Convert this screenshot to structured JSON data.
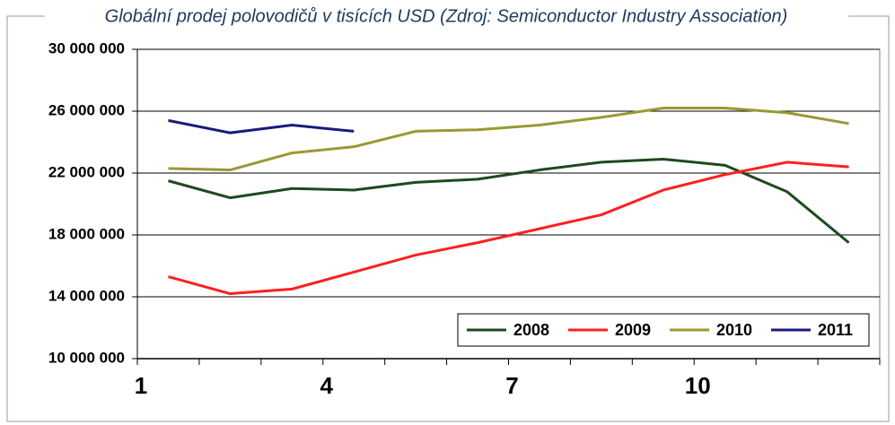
{
  "chart_data": {
    "type": "line",
    "title": "Globální prodej polovodičů v tisících USD (Zdroj: Semiconductor Industry Association)",
    "categories": [
      1,
      null,
      null,
      4,
      null,
      null,
      7,
      null,
      null,
      10,
      null,
      null
    ],
    "series": [
      {
        "name": "2008",
        "color": "#1e4a1e",
        "values": [
          21500000,
          20400000,
          21000000,
          20900000,
          21400000,
          21600000,
          22200000,
          22700000,
          22900000,
          22500000,
          20800000,
          17500000
        ]
      },
      {
        "name": "2009",
        "color": "#ff2020",
        "values": [
          15300000,
          14200000,
          14500000,
          15600000,
          16700000,
          17500000,
          18400000,
          19300000,
          20900000,
          21900000,
          22700000,
          22400000
        ]
      },
      {
        "name": "2010",
        "color": "#999933",
        "values": [
          22300000,
          22200000,
          23300000,
          23700000,
          24700000,
          24800000,
          25100000,
          25600000,
          26200000,
          26200000,
          25900000,
          25200000
        ]
      },
      {
        "name": "2011",
        "color": "#1a1a80",
        "values": [
          25400000,
          24600000,
          25100000,
          24700000,
          null,
          null,
          null,
          null,
          null,
          null,
          null,
          null
        ]
      }
    ],
    "ylim": [
      10000000,
      30000000
    ],
    "yticks": [
      {
        "value": 10000000,
        "label": "10 000 000"
      },
      {
        "value": 14000000,
        "label": "14 000 000"
      },
      {
        "value": 18000000,
        "label": "18 000 000"
      },
      {
        "value": 22000000,
        "label": "22 000 000"
      },
      {
        "value": 26000000,
        "label": "26 000 000"
      },
      {
        "value": 30000000,
        "label": "30 000 000"
      }
    ],
    "grid": true,
    "legend": "bottom-right"
  }
}
